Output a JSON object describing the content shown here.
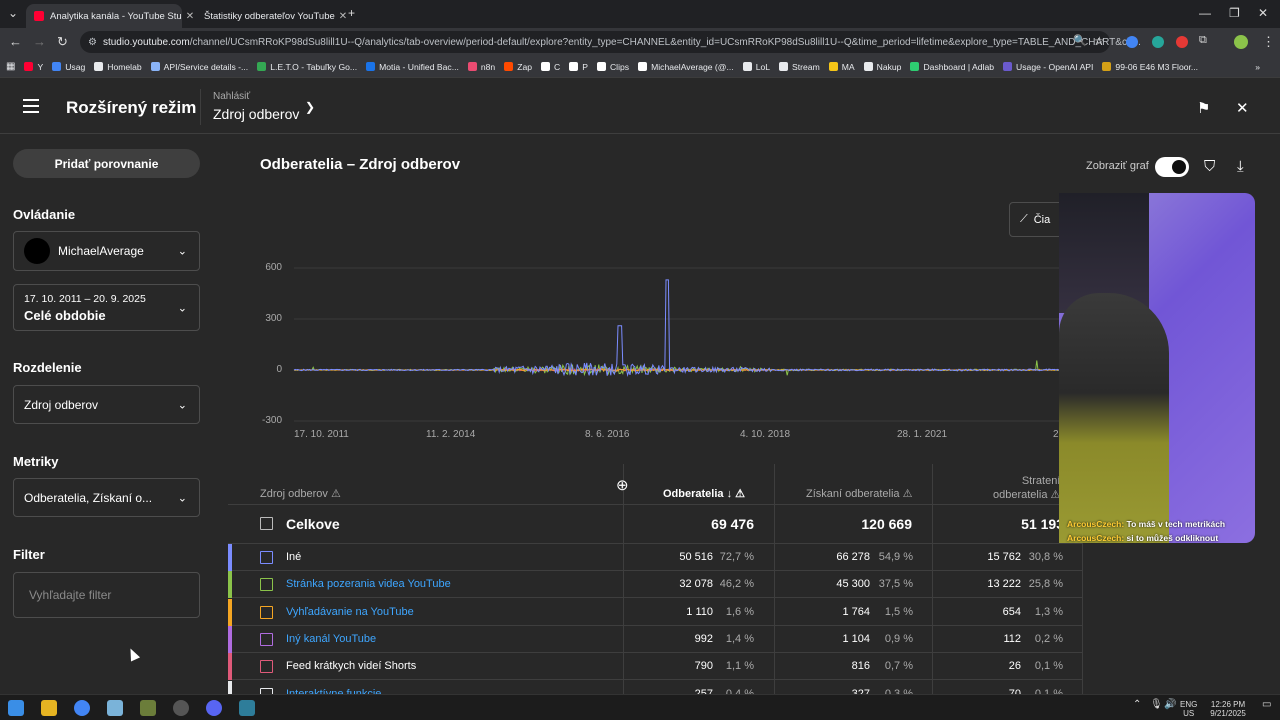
{
  "browser": {
    "tabs": [
      {
        "title": "Analytika kanála - YouTube Stu",
        "active": true
      },
      {
        "title": "Štatistiky odberateľov YouTube",
        "active": false
      }
    ],
    "url_host": "studio.youtube.com",
    "url_path": "/channel/UCsmRRoKP98dSu8lill1U--Q/analytics/tab-overview/period-default/explore?entity_type=CHANNEL&entity_id=UCsmRRoKP98dSu8lill1U--Q&time_period=lifetime&explore_type=TABLE_AND_CHART&ch...",
    "bookmarks": [
      "Y",
      "Usag",
      "Homelab",
      "API/Service details -...",
      "L.E.T.O - Tabuľky Go...",
      "Motia - Unified Bac...",
      "n8n",
      "Zap",
      "C",
      "P",
      "Clips",
      "MichaelAverage (@...",
      "LoL",
      "Stream",
      "MA",
      "Nakup",
      "Dashboard | Adlab",
      "Usage - OpenAI API",
      "99-06 E46 M3 Floor..."
    ],
    "bookmark_colors": [
      "#ff0033",
      "#4285f4",
      "#e8eaed",
      "#8ab4f8",
      "#34a853",
      "#1a73e8",
      "#ea4b71",
      "#ff4a00",
      "#ffffff",
      "#ffffff",
      "#ffffff",
      "#ffffff",
      "#e8eaed",
      "#e8eaed",
      "#f5c518",
      "#e8eaed",
      "#2ecc71",
      "#6a5acd",
      "#d4a017"
    ]
  },
  "header": {
    "title": "Rozšírený režim",
    "report_label": "Nahlásiť",
    "report_value": "Zdroj odberov"
  },
  "sidebar": {
    "compare_button": "Pridať porovnanie",
    "controls_title": "Ovládanie",
    "channel": "MichaelAverage",
    "date_range": "17. 10. 2011 – 20. 9. 2025",
    "period": "Celé obdobie",
    "split_title": "Rozdelenie",
    "split_value": "Zdroj odberov",
    "metrics_title": "Metriky",
    "metrics_value": "Odberatelia, Získaní o...",
    "filter_title": "Filter",
    "filter_placeholder": "Vyhľadajte filter"
  },
  "main": {
    "title": "Odberatelia – Zdroj odberov",
    "show_graph_label": "Zobraziť graf",
    "chart_type_label": "Čia"
  },
  "chart_data": {
    "type": "line",
    "y_ticks": [
      "600",
      "300",
      "0",
      "-300"
    ],
    "ylim": [
      -300,
      600
    ],
    "x_ticks": [
      "17. 10. 2011",
      "11. 2. 2014",
      "8. 6. 2016",
      "4. 10. 2018",
      "28. 1. 2021",
      "2"
    ],
    "colors": {
      "ine": "#7b8cff",
      "pozeranie": "#8bc34a",
      "vyhladavanie": "#f5a623",
      "kanal": "#b06ce0",
      "shorts": "#e05a7a"
    }
  },
  "table": {
    "headers": {
      "source": "Zdroj odberov",
      "subscribers": "Odberatelia",
      "gained": "Získaní odberatelia",
      "lost_line1": "Stratení",
      "lost_line2": "odberatelia"
    },
    "total": {
      "label": "Celkove",
      "subscribers": "69 476",
      "gained": "120 669",
      "lost": "51 193"
    },
    "rows": [
      {
        "label": "Iné",
        "link": false,
        "color": "#7b8cff",
        "subs": "50 516",
        "subs_pct": "72,7 %",
        "gained": "66 278",
        "gained_pct": "54,9 %",
        "lost": "15 762",
        "lost_pct": "30,8 %"
      },
      {
        "label": "Stránka pozerania videa YouTube",
        "link": true,
        "color": "#8bc34a",
        "subs": "32 078",
        "subs_pct": "46,2 %",
        "gained": "45 300",
        "gained_pct": "37,5 %",
        "lost": "13 222",
        "lost_pct": "25,8 %"
      },
      {
        "label": "Vyhľadávanie na YouTube",
        "link": true,
        "color": "#f5a623",
        "subs": "1 110",
        "subs_pct": "1,6 %",
        "gained": "1 764",
        "gained_pct": "1,5 %",
        "lost": "654",
        "lost_pct": "1,3 %"
      },
      {
        "label": "Iný kanál YouTube",
        "link": true,
        "color": "#b06ce0",
        "subs": "992",
        "subs_pct": "1,4 %",
        "gained": "1 104",
        "gained_pct": "0,9 %",
        "lost": "112",
        "lost_pct": "0,2 %"
      },
      {
        "label": "Feed krátkych videí Shorts",
        "link": false,
        "color": "#e05a7a",
        "subs": "790",
        "subs_pct": "1,1 %",
        "gained": "816",
        "gained_pct": "0,7 %",
        "lost": "26",
        "lost_pct": "0,1 %"
      },
      {
        "label": "Interaktívne funkcie",
        "link": true,
        "color": "#e8eaed",
        "subs": "257",
        "subs_pct": "0,4 %",
        "gained": "327",
        "gained_pct": "0,3 %",
        "lost": "70",
        "lost_pct": "0,1 %"
      }
    ]
  },
  "webcam": {
    "chat": [
      {
        "name": "ArcousCzech:",
        "msg": "To máš v tech metrikách"
      },
      {
        "name": "ArcousCzech:",
        "msg": "si to můžeš odkliknout"
      }
    ]
  },
  "taskbar": {
    "lang": "ENG",
    "region": "US",
    "time": "12:26 PM",
    "date": "9/21/2025"
  }
}
